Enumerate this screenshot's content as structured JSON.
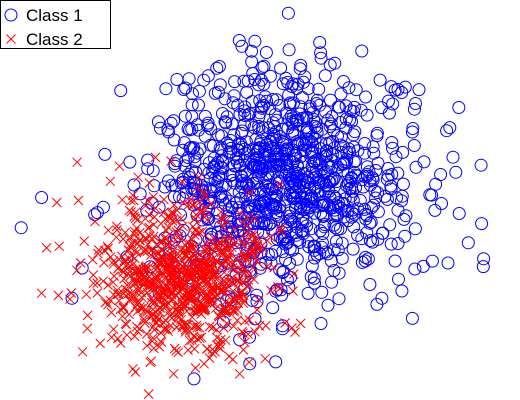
{
  "chart_data": {
    "type": "scatter",
    "title": "",
    "xlabel": "",
    "ylabel": "",
    "axes_visible": false,
    "grid": false,
    "legend": {
      "placement": "top-left"
    },
    "xlim": [
      -4.2,
      5.8
    ],
    "ylim": [
      -3.4,
      4.3
    ],
    "series": [
      {
        "name": "Class 1",
        "marker": "circle",
        "color": "#0000ff",
        "distribution": {
          "n": 1000,
          "mean": [
            1.3,
            0.8
          ],
          "std": [
            1.25,
            1.1
          ],
          "seed": 7
        },
        "points": [
          [
            0.0,
            3.1
          ],
          [
            0.7,
            3.6
          ],
          [
            0.3,
            2.8
          ],
          [
            0.9,
            2.5
          ],
          [
            -1.2,
            2.0
          ],
          [
            -1.0,
            1.8
          ],
          [
            3.8,
            1.8
          ],
          [
            4.6,
            1.3
          ],
          [
            2.4,
            1.7
          ],
          [
            1.9,
            0.9
          ],
          [
            1.5,
            0.3
          ],
          [
            2.9,
            -0.2
          ],
          [
            4.5,
            -0.8
          ],
          [
            4.9,
            -0.4
          ],
          [
            3.2,
            -1.5
          ],
          [
            3.8,
            -1.9
          ],
          [
            2.0,
            -2.0
          ],
          [
            0.6,
            -2.8
          ],
          [
            -0.5,
            -3.1
          ],
          [
            -2.7,
            -0.9
          ],
          [
            -3.5,
            0.5
          ],
          [
            -3.9,
            -0.1
          ],
          [
            -2.9,
            -1.5
          ],
          [
            -2.4,
            0.2
          ]
        ]
      },
      {
        "name": "Class 2",
        "marker": "x",
        "color": "#ff0000",
        "distribution": {
          "n": 800,
          "mean": [
            -0.7,
            -1.1
          ],
          "std": [
            0.85,
            0.7
          ],
          "seed": 13
        },
        "points": [
          [
            -3.2,
            0.4
          ],
          [
            -3.4,
            -0.5
          ],
          [
            -3.5,
            -1.4
          ],
          [
            -2.8,
            1.2
          ],
          [
            -2.6,
            -2.1
          ],
          [
            -2.0,
            -2.3
          ],
          [
            -1.7,
            -2.9
          ],
          [
            -0.3,
            -2.8
          ],
          [
            0.4,
            -3.0
          ],
          [
            1.2,
            -1.3
          ],
          [
            1.6,
            -2.0
          ],
          [
            0.6,
            0.6
          ],
          [
            -0.4,
            0.9
          ],
          [
            -1.6,
            0.9
          ],
          [
            -1.1,
            0.2
          ],
          [
            0.1,
            -0.3
          ],
          [
            0.9,
            -2.7
          ],
          [
            -0.9,
            -3.0
          ]
        ]
      }
    ]
  }
}
